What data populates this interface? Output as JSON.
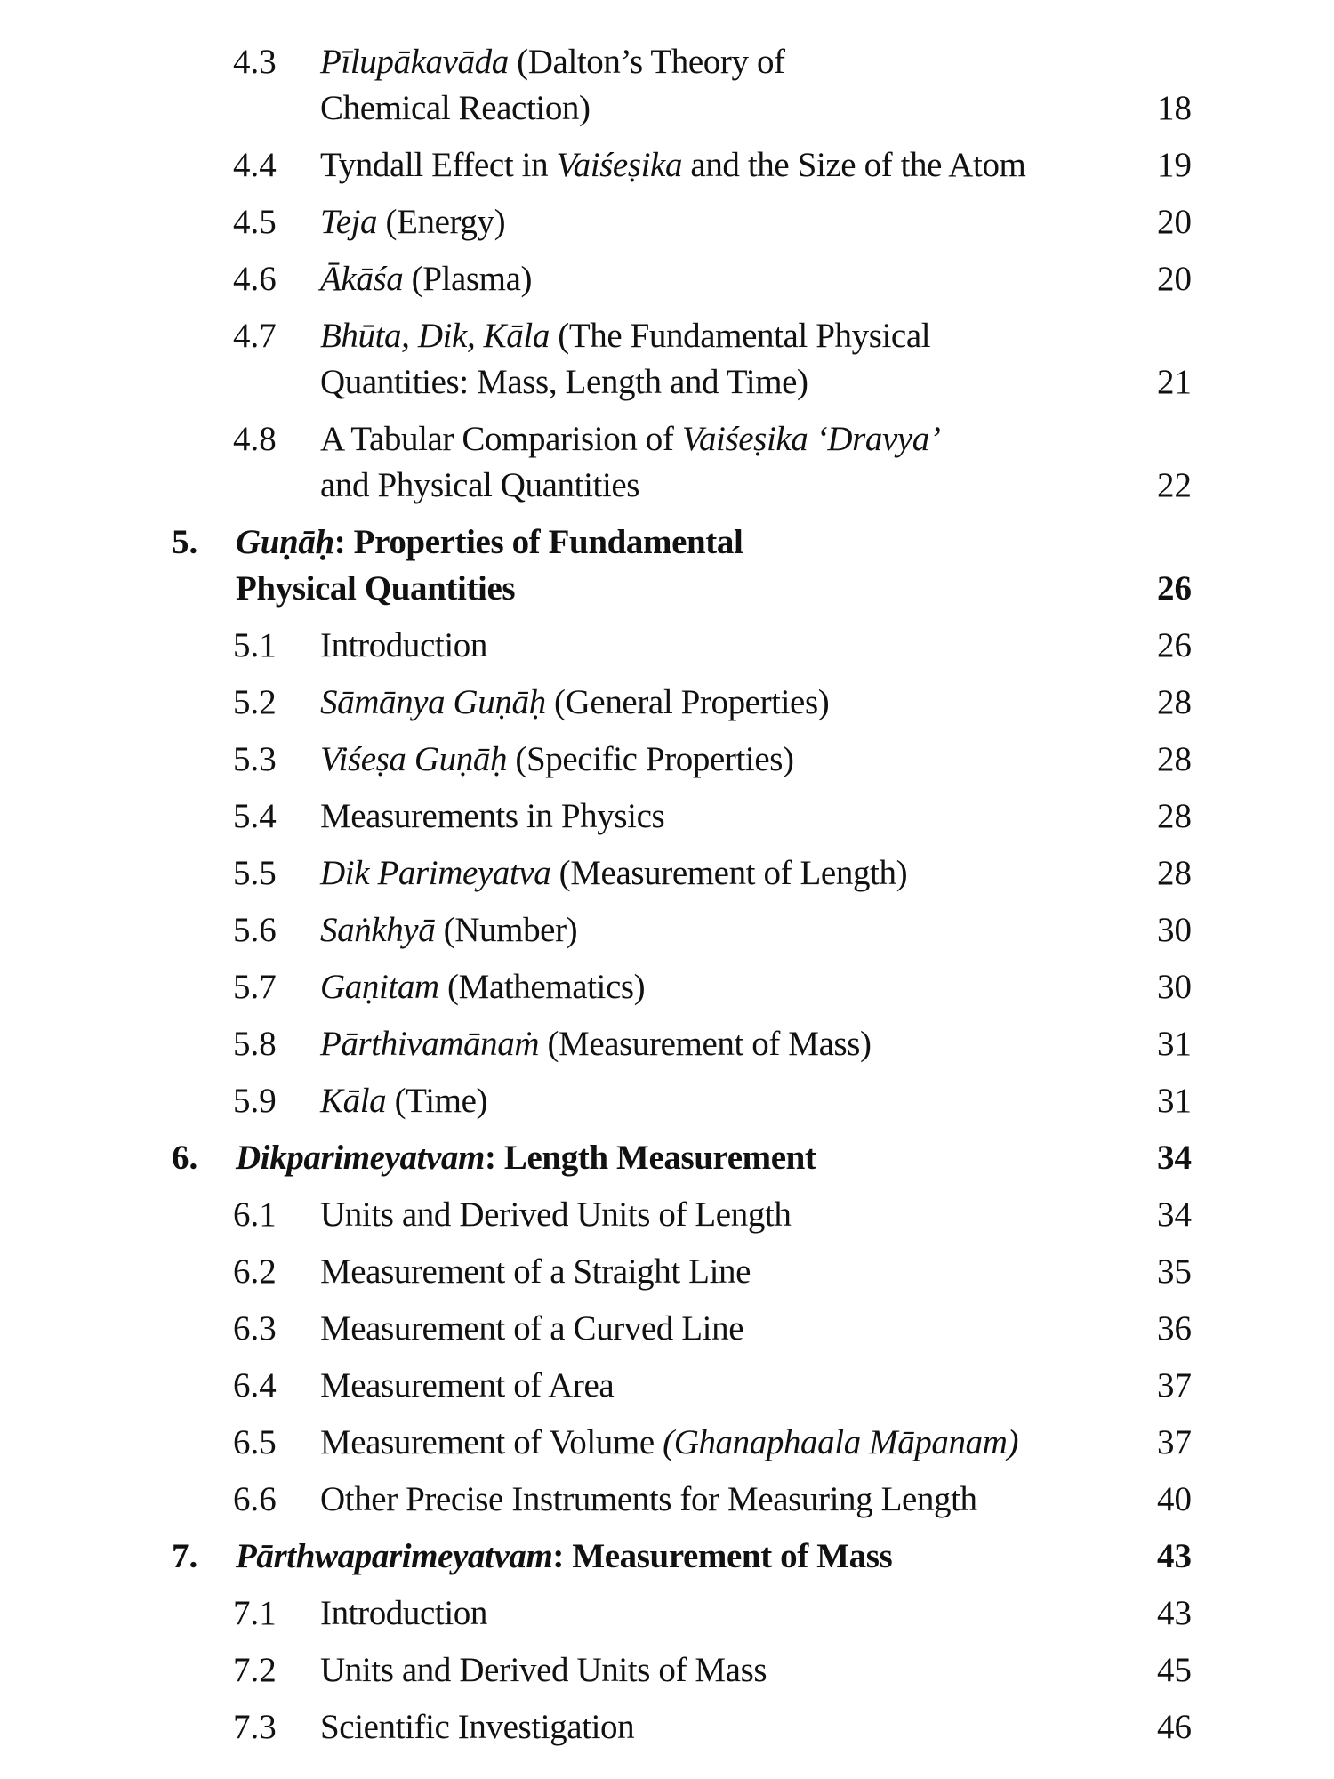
{
  "toc": [
    {
      "level": "sub",
      "num": "4.3",
      "lines": [
        [
          {
            "t": "Pīlupākavāda",
            "i": true
          },
          {
            "t": " (Dalton’s Theory of"
          }
        ],
        [
          {
            "t": "Chemical Reaction)"
          }
        ]
      ],
      "page": "18"
    },
    {
      "level": "sub",
      "num": "4.4",
      "lines": [
        [
          {
            "t": "Tyndall Effect in "
          },
          {
            "t": "Vaiśeṣika",
            "i": true
          },
          {
            "t": " and the Size of the Atom"
          }
        ]
      ],
      "page": "19"
    },
    {
      "level": "sub",
      "num": "4.5",
      "lines": [
        [
          {
            "t": "Teja",
            "i": true
          },
          {
            "t": " (Energy)"
          }
        ]
      ],
      "page": "20"
    },
    {
      "level": "sub",
      "num": "4.6",
      "lines": [
        [
          {
            "t": "Ākāśa",
            "i": true
          },
          {
            "t": " (Plasma)"
          }
        ]
      ],
      "page": "20"
    },
    {
      "level": "sub",
      "num": "4.7",
      "lines": [
        [
          {
            "t": "Bhūta, Dik, Kāla",
            "i": true
          },
          {
            "t": " (The Fundamental Physical"
          }
        ],
        [
          {
            "t": "Quantities: Mass, Length and Time)"
          }
        ]
      ],
      "page": "21"
    },
    {
      "level": "sub",
      "num": "4.8",
      "lines": [
        [
          {
            "t": "A Tabular Comparision of "
          },
          {
            "t": "Vaiśeṣika ‘Dravya’",
            "i": true
          }
        ],
        [
          {
            "t": "and Physical Quantities"
          }
        ]
      ],
      "page": "22"
    },
    {
      "level": "head",
      "num": "5.",
      "lines": [
        [
          {
            "t": "Guṇāḥ",
            "i": true
          },
          {
            "t": ": Properties of Fundamental"
          }
        ],
        [
          {
            "t": "Physical Quantities"
          }
        ]
      ],
      "page": "26"
    },
    {
      "level": "sub",
      "num": "5.1",
      "lines": [
        [
          {
            "t": "Introduction"
          }
        ]
      ],
      "page": "26"
    },
    {
      "level": "sub",
      "num": "5.2",
      "lines": [
        [
          {
            "t": "Sāmānya Guṇāḥ",
            "i": true
          },
          {
            "t": " (General Properties)"
          }
        ]
      ],
      "page": "28"
    },
    {
      "level": "sub",
      "num": "5.3",
      "lines": [
        [
          {
            "t": "Viśeṣa Guṇāḥ",
            "i": true
          },
          {
            "t": " (Specific Properties)"
          }
        ]
      ],
      "page": "28"
    },
    {
      "level": "sub",
      "num": "5.4",
      "lines": [
        [
          {
            "t": "Measurements in Physics"
          }
        ]
      ],
      "page": "28"
    },
    {
      "level": "sub",
      "num": "5.5",
      "lines": [
        [
          {
            "t": "Dik Parimeyatva",
            "i": true
          },
          {
            "t": " (Measurement of Length)"
          }
        ]
      ],
      "page": "28"
    },
    {
      "level": "sub",
      "num": "5.6",
      "lines": [
        [
          {
            "t": "Saṅkhyā",
            "i": true
          },
          {
            "t": " (Number)"
          }
        ]
      ],
      "page": "30"
    },
    {
      "level": "sub",
      "num": "5.7",
      "lines": [
        [
          {
            "t": "Gaṇitam",
            "i": true
          },
          {
            "t": " (Mathematics)"
          }
        ]
      ],
      "page": "30"
    },
    {
      "level": "sub",
      "num": "5.8",
      "lines": [
        [
          {
            "t": "Pārthivamānaṁ",
            "i": true
          },
          {
            "t": " (Measurement of Mass)"
          }
        ]
      ],
      "page": "31"
    },
    {
      "level": "sub",
      "num": "5.9",
      "lines": [
        [
          {
            "t": "Kāla",
            "i": true
          },
          {
            "t": " (Time)"
          }
        ]
      ],
      "page": "31"
    },
    {
      "level": "head",
      "num": "6.",
      "lines": [
        [
          {
            "t": "Dikparimeyatvam",
            "i": true
          },
          {
            "t": ": Length Measurement"
          }
        ]
      ],
      "page": "34"
    },
    {
      "level": "sub",
      "num": "6.1",
      "lines": [
        [
          {
            "t": "Units and Derived Units of Length"
          }
        ]
      ],
      "page": "34"
    },
    {
      "level": "sub",
      "num": "6.2",
      "lines": [
        [
          {
            "t": "Measurement of a Straight Line"
          }
        ]
      ],
      "page": "35"
    },
    {
      "level": "sub",
      "num": "6.3",
      "lines": [
        [
          {
            "t": "Measurement of a Curved Line"
          }
        ]
      ],
      "page": "36"
    },
    {
      "level": "sub",
      "num": "6.4",
      "lines": [
        [
          {
            "t": "Measurement of Area"
          }
        ]
      ],
      "page": "37"
    },
    {
      "level": "sub",
      "num": "6.5",
      "lines": [
        [
          {
            "t": "Measurement of Volume "
          },
          {
            "t": "(Ghanaphaala Māpanam)",
            "i": true
          }
        ]
      ],
      "page": "37"
    },
    {
      "level": "sub",
      "num": "6.6",
      "lines": [
        [
          {
            "t": "Other Precise Instruments for Measuring Length"
          }
        ]
      ],
      "page": "40"
    },
    {
      "level": "head",
      "num": "7.",
      "lines": [
        [
          {
            "t": "Pārthwaparimeyatvam",
            "i": true
          },
          {
            "t": ": Measurement of Mass"
          }
        ]
      ],
      "page": "43"
    },
    {
      "level": "sub",
      "num": "7.1",
      "lines": [
        [
          {
            "t": "Introduction"
          }
        ]
      ],
      "page": "43"
    },
    {
      "level": "sub",
      "num": "7.2",
      "lines": [
        [
          {
            "t": "Units and Derived Units of Mass"
          }
        ]
      ],
      "page": "45"
    },
    {
      "level": "sub",
      "num": "7.3",
      "lines": [
        [
          {
            "t": "Scientific Investigation"
          }
        ]
      ],
      "page": "46"
    }
  ]
}
